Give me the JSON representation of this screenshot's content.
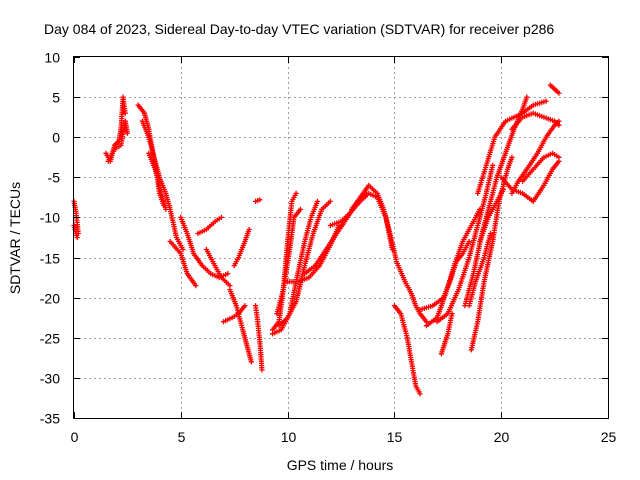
{
  "chart_data": {
    "type": "scatter",
    "title": "Day 084 of 2023, Sidereal Day-to-day VTEC variation (SDTVAR) for receiver p286",
    "xlabel": "GPS time / hours",
    "ylabel": "SDTVAR / TECUs",
    "xlim": [
      0,
      25
    ],
    "ylim": [
      -35,
      10
    ],
    "xticks": [
      "0",
      "5",
      "10",
      "15",
      "20",
      "25"
    ],
    "yticks": [
      "10",
      "5",
      "0",
      "-5",
      "-10",
      "-15",
      "-20",
      "-25",
      "-30",
      "-35"
    ],
    "xtick_values": [
      0,
      5,
      10,
      15,
      20,
      25
    ],
    "ytick_values": [
      10,
      5,
      0,
      -5,
      -10,
      -15,
      -20,
      -25,
      -30,
      -35
    ],
    "grid": true,
    "marker": "+",
    "color": "#ff0000",
    "segments": [
      [
        [
          0.0,
          -8
        ],
        [
          0.1,
          -9.5
        ],
        [
          0.2,
          -12
        ]
      ],
      [
        [
          0.0,
          -11
        ],
        [
          0.15,
          -12.5
        ]
      ],
      [
        [
          1.5,
          -2
        ],
        [
          1.7,
          -3
        ],
        [
          1.9,
          -1
        ],
        [
          2.1,
          -0.5
        ],
        [
          2.2,
          1
        ],
        [
          2.3,
          5
        ],
        [
          2.4,
          3
        ]
      ],
      [
        [
          1.6,
          -3
        ],
        [
          1.9,
          -1.5
        ],
        [
          2.2,
          -1
        ],
        [
          2.4,
          2
        ],
        [
          2.5,
          0.5
        ]
      ],
      [
        [
          3.0,
          4
        ],
        [
          3.3,
          3
        ],
        [
          3.5,
          1
        ],
        [
          3.7,
          -2
        ],
        [
          3.9,
          -5
        ],
        [
          4.0,
          -7
        ],
        [
          4.2,
          -8.5
        ]
      ],
      [
        [
          3.2,
          2
        ],
        [
          3.5,
          0
        ],
        [
          3.8,
          -3
        ],
        [
          4.0,
          -5
        ],
        [
          4.3,
          -7
        ],
        [
          4.5,
          -9
        ],
        [
          4.8,
          -12.5
        ],
        [
          5.1,
          -14
        ]
      ],
      [
        [
          3.5,
          -2
        ],
        [
          3.8,
          -4
        ],
        [
          4.0,
          -6
        ],
        [
          4.3,
          -9
        ]
      ],
      [
        [
          4.5,
          -13
        ],
        [
          5.0,
          -14.5
        ],
        [
          5.3,
          -17
        ],
        [
          5.7,
          -18.5
        ]
      ],
      [
        [
          5.0,
          -10
        ],
        [
          5.3,
          -12
        ],
        [
          5.6,
          -14.5
        ],
        [
          6.0,
          -16
        ],
        [
          6.4,
          -17
        ],
        [
          6.8,
          -17.5
        ],
        [
          7.2,
          -17
        ]
      ],
      [
        [
          5.8,
          -12
        ],
        [
          6.2,
          -11.5
        ],
        [
          6.6,
          -10.5
        ],
        [
          6.9,
          -10
        ]
      ],
      [
        [
          6.2,
          -14
        ],
        [
          6.6,
          -16
        ],
        [
          6.9,
          -17.5
        ],
        [
          7.3,
          -18.5
        ]
      ],
      [
        [
          7.3,
          -19
        ],
        [
          7.6,
          -21
        ],
        [
          7.9,
          -24
        ],
        [
          8.1,
          -26
        ],
        [
          8.3,
          -28
        ]
      ],
      [
        [
          7.5,
          -16
        ],
        [
          7.7,
          -15
        ],
        [
          8.0,
          -13
        ],
        [
          8.2,
          -11.5
        ]
      ],
      [
        [
          7.0,
          -23
        ],
        [
          7.4,
          -22.5
        ],
        [
          7.7,
          -22
        ],
        [
          8.0,
          -21
        ]
      ],
      [
        [
          8.5,
          -21
        ],
        [
          8.6,
          -23
        ],
        [
          8.7,
          -25.5
        ],
        [
          8.8,
          -29
        ]
      ],
      [
        [
          8.5,
          -8
        ],
        [
          8.7,
          -7.8
        ]
      ],
      [
        [
          9.3,
          -24
        ],
        [
          9.6,
          -23
        ],
        [
          9.8,
          -19
        ],
        [
          10.0,
          -13
        ],
        [
          10.2,
          -8
        ],
        [
          10.4,
          -7
        ]
      ],
      [
        [
          9.5,
          -22
        ],
        [
          9.8,
          -19
        ],
        [
          10.1,
          -14
        ],
        [
          10.3,
          -10
        ],
        [
          10.6,
          -9
        ]
      ],
      [
        [
          9.3,
          -24.5
        ],
        [
          9.7,
          -24
        ],
        [
          10.1,
          -22
        ],
        [
          10.4,
          -18
        ],
        [
          10.8,
          -13
        ],
        [
          11.1,
          -10
        ],
        [
          11.4,
          -8
        ]
      ],
      [
        [
          9.6,
          -23.5
        ],
        [
          10.0,
          -22.5
        ],
        [
          10.4,
          -20.5
        ],
        [
          10.8,
          -16
        ],
        [
          11.2,
          -12
        ],
        [
          11.6,
          -9
        ],
        [
          12.0,
          -8
        ]
      ],
      [
        [
          10.0,
          -18
        ],
        [
          10.5,
          -18
        ],
        [
          11.0,
          -17.5
        ],
        [
          11.5,
          -16
        ],
        [
          12.0,
          -13.5
        ],
        [
          12.4,
          -11
        ]
      ],
      [
        [
          10.8,
          -17
        ],
        [
          11.3,
          -16
        ],
        [
          11.8,
          -14
        ],
        [
          12.3,
          -12
        ],
        [
          12.8,
          -10
        ],
        [
          13.3,
          -8
        ],
        [
          13.7,
          -7
        ]
      ],
      [
        [
          12.0,
          -11
        ],
        [
          12.5,
          -10.5
        ],
        [
          12.9,
          -9.5
        ],
        [
          13.4,
          -8
        ],
        [
          13.8,
          -7
        ],
        [
          14.2,
          -7.5
        ],
        [
          14.6,
          -10
        ],
        [
          14.9,
          -14
        ]
      ],
      [
        [
          13.0,
          -9
        ],
        [
          13.4,
          -7.5
        ],
        [
          13.8,
          -6
        ],
        [
          14.2,
          -7
        ],
        [
          14.5,
          -9
        ],
        [
          14.8,
          -12
        ],
        [
          15.1,
          -15.5
        ],
        [
          15.5,
          -18
        ]
      ],
      [
        [
          15.0,
          -21
        ],
        [
          15.3,
          -22
        ],
        [
          15.6,
          -25
        ],
        [
          15.8,
          -28
        ],
        [
          16.0,
          -31
        ],
        [
          16.2,
          -32
        ]
      ],
      [
        [
          15.5,
          -18
        ],
        [
          15.8,
          -19.5
        ],
        [
          16.0,
          -21
        ],
        [
          16.2,
          -22
        ],
        [
          16.5,
          -23
        ]
      ],
      [
        [
          16.2,
          -21.5
        ],
        [
          16.8,
          -21
        ],
        [
          17.3,
          -20
        ],
        [
          17.6,
          -18
        ],
        [
          17.9,
          -15.5
        ],
        [
          18.2,
          -14.5
        ],
        [
          18.5,
          -13
        ]
      ],
      [
        [
          16.5,
          -23.5
        ],
        [
          17.0,
          -22.5
        ],
        [
          17.4,
          -19.5
        ],
        [
          17.8,
          -16
        ],
        [
          18.2,
          -13
        ],
        [
          18.6,
          -11
        ],
        [
          19.0,
          -9
        ]
      ],
      [
        [
          17.0,
          -23
        ],
        [
          17.5,
          -22
        ],
        [
          18.0,
          -19
        ],
        [
          18.5,
          -15
        ],
        [
          18.9,
          -11
        ],
        [
          19.3,
          -7
        ],
        [
          19.6,
          -3.5
        ]
      ],
      [
        [
          17.2,
          -27
        ],
        [
          17.5,
          -24.5
        ],
        [
          17.7,
          -22
        ]
      ],
      [
        [
          18.6,
          -26.5
        ],
        [
          18.9,
          -23
        ],
        [
          19.2,
          -18
        ],
        [
          19.6,
          -13
        ],
        [
          19.9,
          -8
        ],
        [
          20.3,
          -4
        ],
        [
          20.5,
          -2.5
        ]
      ],
      [
        [
          18.3,
          -21
        ],
        [
          18.7,
          -17
        ],
        [
          19.1,
          -12
        ],
        [
          19.5,
          -8
        ],
        [
          19.8,
          -5
        ],
        [
          20.2,
          -2
        ],
        [
          20.6,
          1
        ],
        [
          21.0,
          3.5
        ],
        [
          21.2,
          5
        ]
      ],
      [
        [
          18.5,
          -21
        ],
        [
          18.8,
          -18
        ],
        [
          19.2,
          -15
        ],
        [
          19.5,
          -12
        ]
      ],
      [
        [
          19.0,
          -13
        ],
        [
          19.4,
          -10
        ],
        [
          19.8,
          -8
        ],
        [
          20.1,
          -6.5
        ]
      ],
      [
        [
          18.9,
          -7
        ],
        [
          19.3,
          -3.5
        ],
        [
          19.7,
          0
        ],
        [
          20.2,
          2
        ],
        [
          20.6,
          2.5
        ],
        [
          21.0,
          3
        ],
        [
          21.5,
          4
        ],
        [
          22.1,
          4.5
        ]
      ],
      [
        [
          20.5,
          1
        ],
        [
          21.0,
          2.5
        ],
        [
          21.5,
          3
        ],
        [
          22.0,
          2.5
        ],
        [
          22.5,
          2
        ],
        [
          22.7,
          1.5
        ]
      ],
      [
        [
          20.5,
          -7
        ],
        [
          20.8,
          -5.5
        ],
        [
          21.2,
          -4
        ],
        [
          21.7,
          -2
        ],
        [
          22.1,
          0
        ],
        [
          22.5,
          1.5
        ],
        [
          22.7,
          2
        ]
      ],
      [
        [
          20.0,
          -5
        ],
        [
          20.5,
          -6.5
        ],
        [
          21.0,
          -7
        ],
        [
          21.5,
          -8
        ],
        [
          22.0,
          -6
        ],
        [
          22.4,
          -4
        ],
        [
          22.7,
          -3
        ]
      ],
      [
        [
          21.0,
          -5.5
        ],
        [
          21.5,
          -4
        ],
        [
          22.0,
          -2.5
        ],
        [
          22.4,
          -2
        ],
        [
          22.7,
          -2.5
        ]
      ],
      [
        [
          22.3,
          6.5
        ],
        [
          22.5,
          6
        ],
        [
          22.7,
          5.5
        ]
      ]
    ]
  }
}
